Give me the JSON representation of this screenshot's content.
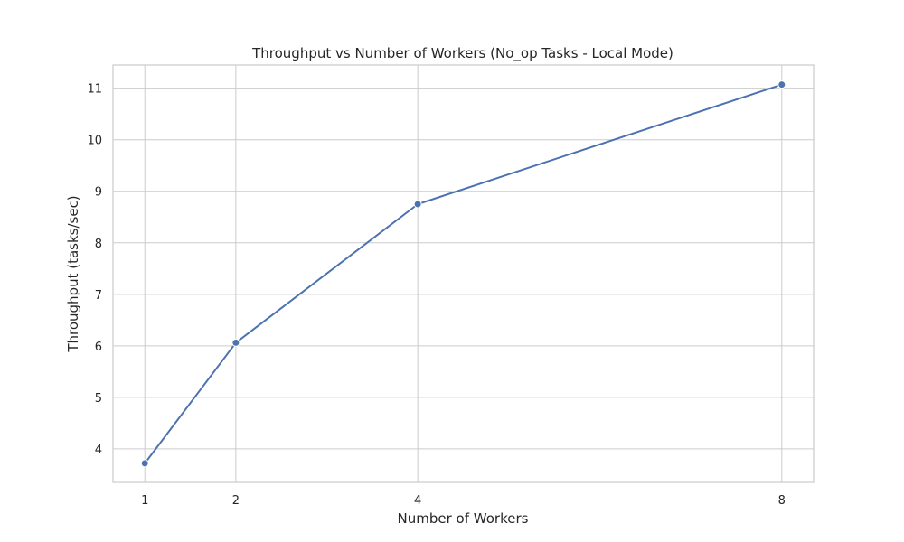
{
  "chart_data": {
    "type": "line",
    "title": "Throughput vs Number of Workers (No_op Tasks - Local Mode)",
    "xlabel": "Number of Workers",
    "ylabel": "Throughput (tasks/sec)",
    "x": [
      1,
      2,
      4,
      8
    ],
    "xticks": [
      "1",
      "2",
      "4",
      "8"
    ],
    "yticks": [
      "4",
      "5",
      "6",
      "7",
      "8",
      "9",
      "10",
      "11"
    ],
    "xlim": [
      0.65,
      8.35
    ],
    "ylim": [
      3.35,
      11.45
    ],
    "grid": true,
    "series": [
      {
        "values": [
          3.72,
          6.06,
          8.75,
          11.07
        ],
        "color": "#4c72b0",
        "marker": "circle"
      }
    ]
  }
}
